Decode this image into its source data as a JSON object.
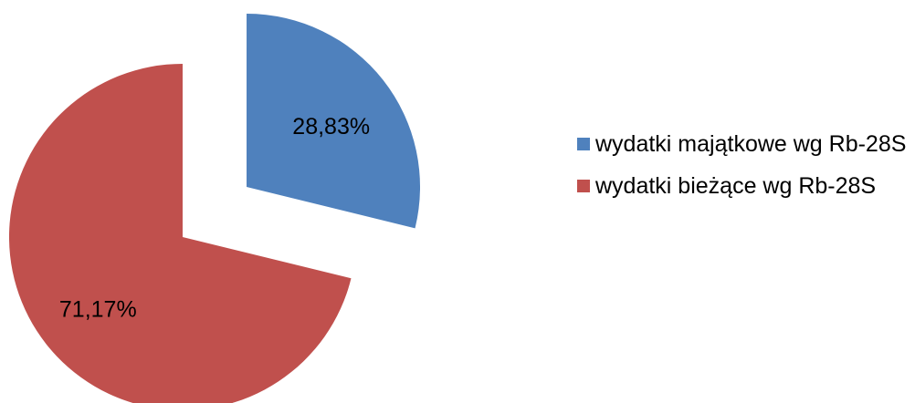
{
  "chart_data": {
    "type": "pie",
    "categories": [
      "wydatki majątkowe wg Rb-28S",
      "wydatki bieżące wg Rb-28S"
    ],
    "values": [
      28.83,
      71.17
    ],
    "value_labels": [
      "28,83%",
      "71,17%"
    ],
    "colors": [
      "#4f81bd",
      "#c0504d"
    ],
    "legend": "right"
  }
}
